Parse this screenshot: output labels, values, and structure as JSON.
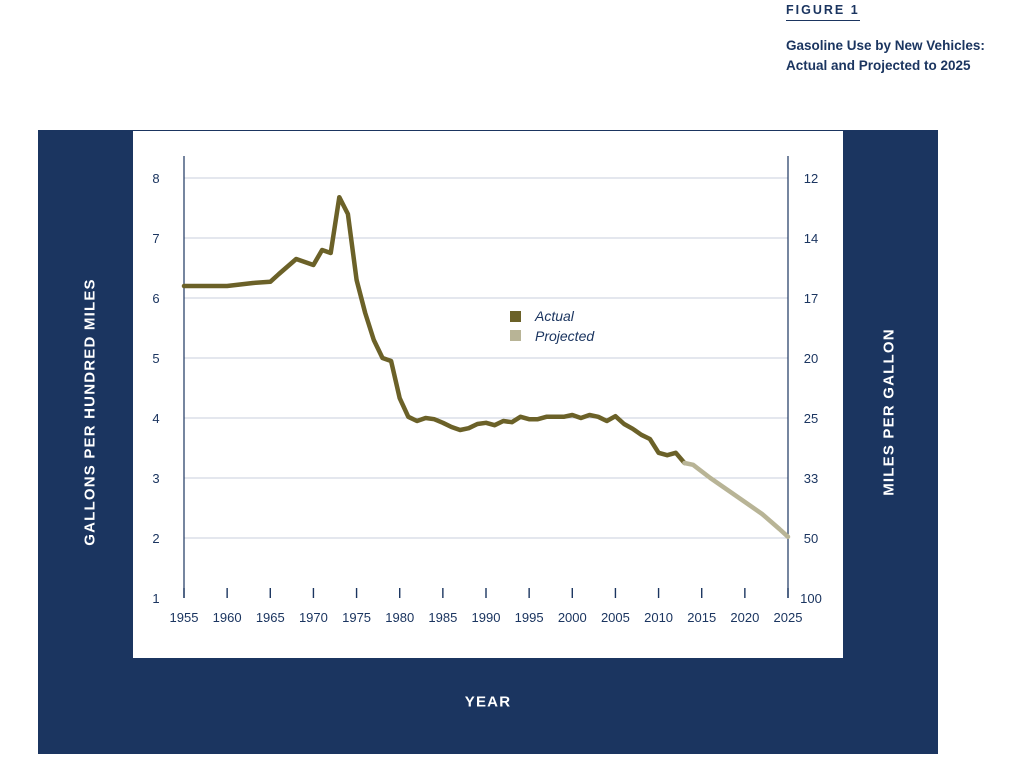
{
  "figure": {
    "label": "FIGURE 1",
    "title_line1": "Gasoline Use by New Vehicles:",
    "title_line2": "Actual and Projected to 2025"
  },
  "colors": {
    "frame": "#1b3560",
    "actual": "#6b6128",
    "projected": "#b8b496",
    "grid": "#c9cfdc",
    "text": "#1b3560"
  },
  "chart_data": {
    "type": "line",
    "title": "Gasoline Use by New Vehicles: Actual and Projected to 2025",
    "xlabel": "YEAR",
    "ylabel": "GALLONS PER HUNDRED MILES",
    "y2label": "MILES PER GALLON",
    "xlim": [
      1955,
      2025
    ],
    "ylim": [
      1,
      8
    ],
    "x_ticks": [
      1955,
      1960,
      1965,
      1970,
      1975,
      1980,
      1985,
      1990,
      1995,
      2000,
      2005,
      2010,
      2015,
      2020,
      2025
    ],
    "y_ticks": [
      1,
      2,
      3,
      4,
      5,
      6,
      7,
      8
    ],
    "y2_ticks": [
      {
        "at": 8,
        "label": "12"
      },
      {
        "at": 7,
        "label": "14"
      },
      {
        "at": 6,
        "label": "17"
      },
      {
        "at": 5,
        "label": "20"
      },
      {
        "at": 4,
        "label": "25"
      },
      {
        "at": 3,
        "label": "33"
      },
      {
        "at": 2,
        "label": "50"
      },
      {
        "at": 1,
        "label": "100"
      }
    ],
    "grid": true,
    "legend_position": "center",
    "series": [
      {
        "name": "Actual",
        "x": [
          1955,
          1960,
          1963,
          1965,
          1966,
          1968,
          1969,
          1970,
          1971,
          1972,
          1973,
          1974,
          1975,
          1976,
          1977,
          1978,
          1979,
          1980,
          1981,
          1982,
          1983,
          1984,
          1985,
          1986,
          1987,
          1988,
          1989,
          1990,
          1991,
          1992,
          1993,
          1994,
          1995,
          1996,
          1997,
          1998,
          1999,
          2000,
          2001,
          2002,
          2003,
          2004,
          2005,
          2006,
          2007,
          2008,
          2009,
          2010,
          2011,
          2012,
          2013
        ],
        "values": [
          6.2,
          6.2,
          6.25,
          6.27,
          6.4,
          6.65,
          6.6,
          6.55,
          6.8,
          6.75,
          7.68,
          7.4,
          6.3,
          5.75,
          5.3,
          5.0,
          4.95,
          4.33,
          4.02,
          3.95,
          4.0,
          3.98,
          3.92,
          3.85,
          3.8,
          3.83,
          3.9,
          3.92,
          3.88,
          3.95,
          3.93,
          4.02,
          3.98,
          3.98,
          4.02,
          4.02,
          4.02,
          4.05,
          4.0,
          4.05,
          4.02,
          3.95,
          4.03,
          3.9,
          3.82,
          3.72,
          3.65,
          3.42,
          3.38,
          3.42,
          3.25
        ]
      },
      {
        "name": "Projected",
        "x": [
          2013,
          2014,
          2016,
          2018,
          2020,
          2022,
          2024,
          2025
        ],
        "values": [
          3.25,
          3.22,
          3.0,
          2.8,
          2.6,
          2.4,
          2.15,
          2.02
        ]
      }
    ]
  }
}
